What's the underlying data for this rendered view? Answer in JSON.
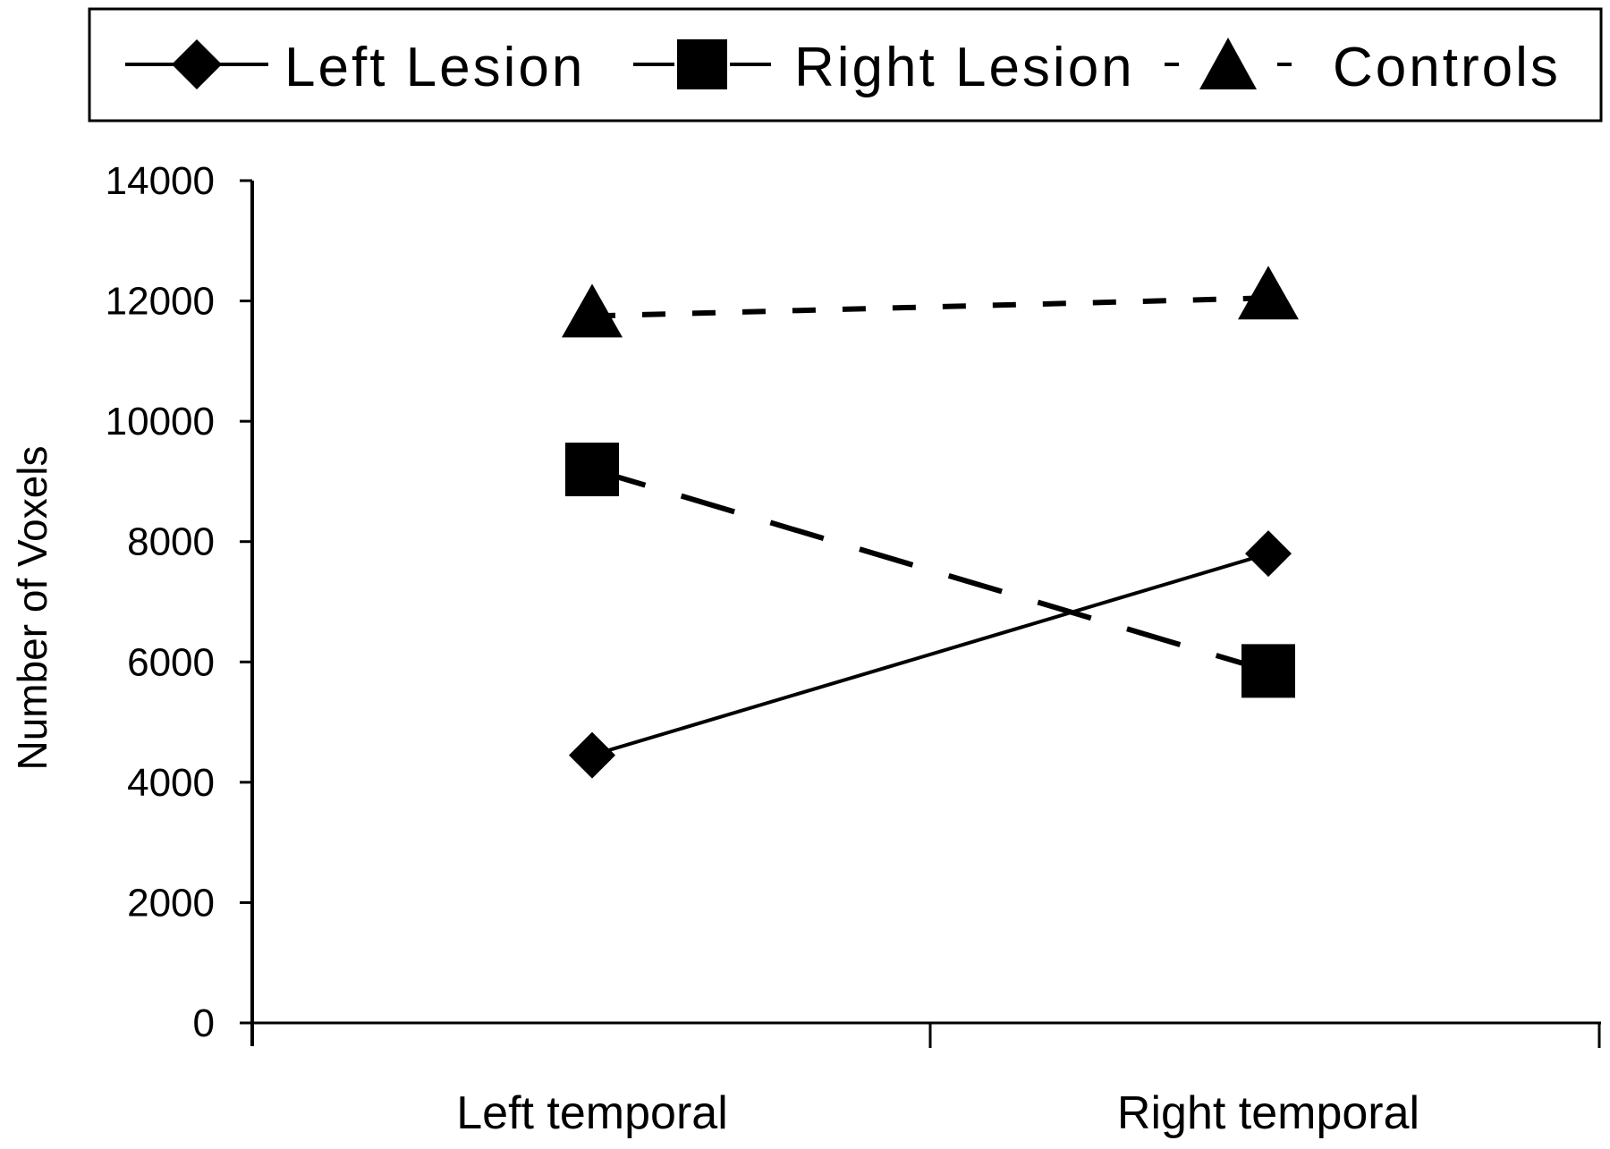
{
  "chart_data": {
    "type": "line",
    "title": "",
    "xlabel": "",
    "ylabel": "Number of Voxels",
    "categories": [
      "Left temporal",
      "Right temporal"
    ],
    "ylim": [
      0,
      14000
    ],
    "yticks": [
      0,
      2000,
      4000,
      6000,
      8000,
      10000,
      12000,
      14000
    ],
    "legend_position": "top",
    "grid": false,
    "series": [
      {
        "name": "Left Lesion",
        "marker": "diamond",
        "line": "solid",
        "color": "#000000",
        "values": [
          4450,
          7800
        ]
      },
      {
        "name": "Right Lesion",
        "marker": "square",
        "line": "long-dash",
        "color": "#000000",
        "values": [
          9200,
          5850
        ]
      },
      {
        "name": "Controls",
        "marker": "triangle",
        "line": "dotted",
        "color": "#000000",
        "values": [
          11750,
          12050
        ]
      }
    ]
  }
}
